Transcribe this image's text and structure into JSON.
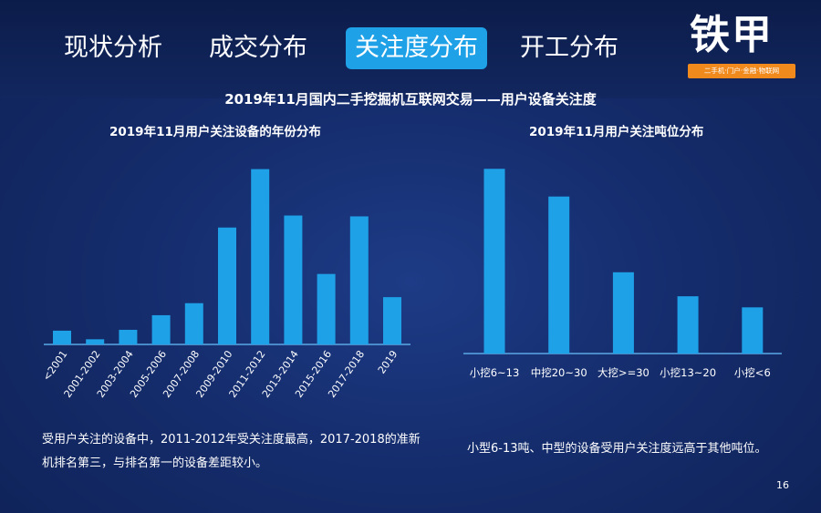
{
  "tabs": [
    {
      "label": "现状分析"
    },
    {
      "label": "成交分布"
    },
    {
      "label": "关注度分布"
    },
    {
      "label": "开工分布"
    }
  ],
  "logo": {
    "main": "铁甲",
    "tagline": "二手机·门户·金融·物联网"
  },
  "main_title": "2019年11月国内二手挖掘机互联网交易——用户设备关注度",
  "colors": {
    "bar": "#1fa1e8",
    "axis": "#5aa8e6",
    "active_tab": "#1fa1e8",
    "logo_accent": "#f18a1c"
  },
  "chart_data": [
    {
      "type": "bar",
      "title": "2019年11月用户关注设备的年份分布",
      "categories": [
        "<2001",
        "2001-2002",
        "2003-2004",
        "2005-2006",
        "2007-2008",
        "2009-2010",
        "2011-2012",
        "2013-2014",
        "2015-2016",
        "2017-2018",
        "2019"
      ],
      "values": [
        8,
        3,
        8.5,
        17,
        24,
        68,
        102,
        75,
        41,
        74.5,
        27.5
      ],
      "xlabel": "",
      "ylabel": "",
      "ylim": [
        0,
        110
      ],
      "grid": false,
      "legend": "none"
    },
    {
      "type": "bar",
      "title": "2019年11月用户关注吨位分布",
      "categories": [
        "小挖6~13",
        "中挖20~30",
        "大挖>=30",
        "小挖13~20",
        "小挖<6"
      ],
      "values": [
        100,
        85,
        44,
        31,
        25
      ],
      "xlabel": "",
      "ylabel": "",
      "ylim": [
        0,
        110
      ],
      "grid": false,
      "legend": "none"
    }
  ],
  "notes": [
    "受用户关注的设备中，2011-2012年受关注度最高，2017-2018的准新机排名第三，与排名第一的设备差距较小。",
    "小型6-13吨、中型的设备受用户关注度远高于其他吨位。"
  ],
  "page_number": "16"
}
